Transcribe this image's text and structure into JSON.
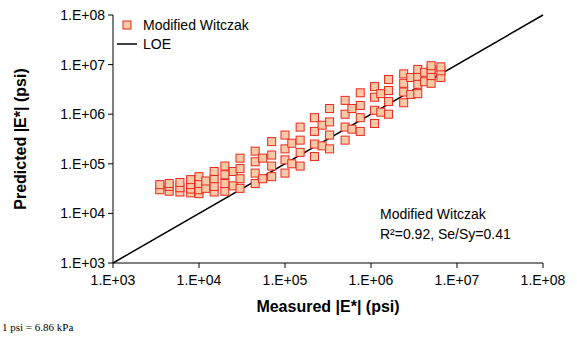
{
  "chart_data": {
    "type": "scatter",
    "x_label": "Measured |E*| (psi)",
    "y_label": "Predicted |E*| (psi)",
    "log": true,
    "grid": false,
    "legend": "top-left",
    "annotations": [
      "Modified Witczak",
      "R²=0.92, Se/Sy=0.41"
    ],
    "footnote": "1 psi = 6.86 kPa",
    "xlim": [
      1000,
      100000000
    ],
    "ylim": [
      1000,
      100000000
    ],
    "xticks": [
      {
        "value": 1000,
        "label": "1.E+03"
      },
      {
        "value": 10000,
        "label": "1.E+04"
      },
      {
        "value": 100000,
        "label": "1.E+05"
      },
      {
        "value": 1000000,
        "label": "1.E+06"
      },
      {
        "value": 10000000,
        "label": "1.E+07"
      },
      {
        "value": 100000000,
        "label": "1.E+08"
      }
    ],
    "yticks": [
      {
        "value": 1000,
        "label": "1.E+03"
      },
      {
        "value": 10000,
        "label": "1.E+04"
      },
      {
        "value": 100000,
        "label": "1.E+05"
      },
      {
        "value": 1000000,
        "label": "1.E+06"
      },
      {
        "value": 10000000,
        "label": "1.E+07"
      },
      {
        "value": 100000000,
        "label": "1.E+08"
      }
    ],
    "series": [
      {
        "name": "Modified Witczak",
        "type": "scatter",
        "marker": "square",
        "color": "#e8281e",
        "x": [
          3500,
          3500,
          4500,
          4500,
          4500,
          6000,
          6000,
          6000,
          8000,
          8000,
          8000,
          8000,
          10000,
          10000,
          10000,
          10000,
          12000,
          12000,
          15000,
          15000,
          15000,
          15000,
          20000,
          20000,
          20000,
          20000,
          25000,
          25000,
          30000,
          30000,
          30000,
          30000,
          45000,
          45000,
          45000,
          45000,
          55000,
          55000,
          70000,
          70000,
          70000,
          70000,
          100000,
          100000,
          100000,
          100000,
          120000,
          120000,
          150000,
          150000,
          150000,
          150000,
          220000,
          220000,
          220000,
          220000,
          270000,
          270000,
          330000,
          330000,
          330000,
          330000,
          500000,
          500000,
          500000,
          500000,
          600000,
          600000,
          750000,
          750000,
          750000,
          750000,
          1100000,
          1100000,
          1100000,
          1100000,
          1300000,
          1300000,
          1600000,
          1600000,
          1600000,
          1600000,
          2400000,
          2400000,
          2400000,
          2400000,
          2900000,
          2900000,
          3500000,
          3500000,
          3500000,
          3500000,
          4200000,
          4200000,
          5000000,
          5000000,
          5000000,
          5000000,
          6500000,
          6500000,
          6500000
        ],
        "values": [
          30000,
          38000,
          28000,
          35000,
          40000,
          27000,
          33000,
          42000,
          26000,
          31000,
          38000,
          48000,
          25000,
          30000,
          40000,
          55000,
          32000,
          45000,
          27000,
          35000,
          50000,
          70000,
          28000,
          40000,
          60000,
          90000,
          36000,
          70000,
          32000,
          50000,
          80000,
          130000,
          40000,
          65000,
          110000,
          180000,
          50000,
          130000,
          55000,
          90000,
          150000,
          280000,
          65000,
          120000,
          200000,
          380000,
          100000,
          260000,
          90000,
          170000,
          300000,
          550000,
          140000,
          250000,
          450000,
          850000,
          230000,
          600000,
          200000,
          380000,
          700000,
          1300000,
          300000,
          550000,
          1000000,
          1900000,
          500000,
          1300000,
          450000,
          850000,
          1500000,
          2700000,
          650000,
          1200000,
          2200000,
          3600000,
          1100000,
          2600000,
          1000000,
          1800000,
          3000000,
          5000000,
          1700000,
          2800000,
          4200000,
          6500000,
          2500000,
          5500000,
          2600000,
          4000000,
          5800000,
          8000000,
          4500000,
          7000000,
          4200000,
          6000000,
          8000000,
          9500000,
          5500000,
          7500000,
          9000000
        ]
      },
      {
        "name": "LOE",
        "type": "line",
        "line_style": "solid",
        "color": "#000000",
        "x": [
          1000,
          100000000
        ],
        "values": [
          1000,
          100000000
        ]
      }
    ]
  }
}
